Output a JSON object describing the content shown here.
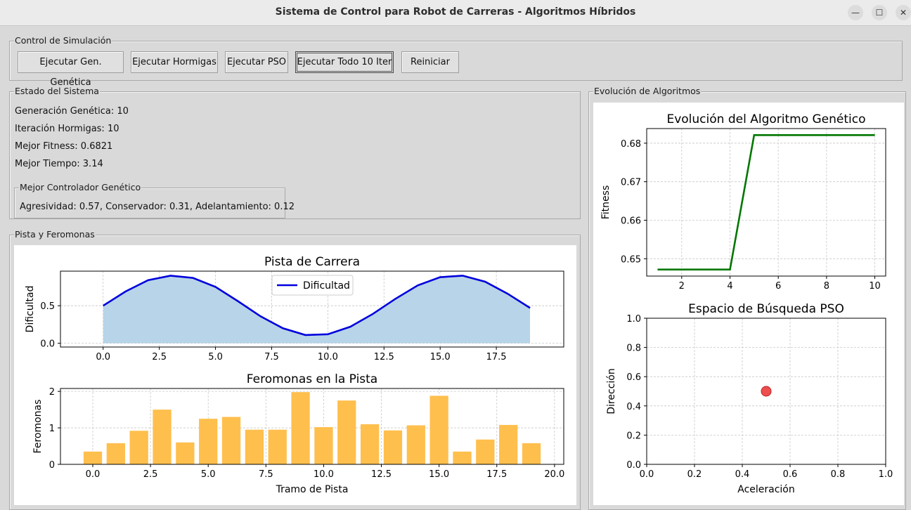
{
  "window": {
    "title": "Sistema de Control para Robot de Carreras - Algoritmos Híbridos",
    "minimize_glyph": "—",
    "maximize_glyph": "☐",
    "close_glyph": "✕"
  },
  "control": {
    "label": "Control de Simulación",
    "buttons": [
      "Ejecutar Gen. Genética",
      "Ejecutar Hormigas",
      "Ejecutar PSO",
      "Ejecutar Todo 10 Iter",
      "Reiniciar"
    ]
  },
  "estado": {
    "label": "Estado del Sistema",
    "generacion": "Generación Genética: 10",
    "iteracion": "Iteración Hormigas: 10",
    "fitness": "Mejor Fitness: 0.6821",
    "tiempo": "Mejor Tiempo: 3.14",
    "controlador_label": "Mejor Controlador Genético",
    "controlador_text": "Agresividad: 0.57, Conservador: 0.31, Adelantamiento: 0.12"
  },
  "pista": {
    "label": "Pista y Feromonas"
  },
  "evolucion": {
    "label": "Evolución de Algoritmos"
  },
  "chart_data": [
    {
      "type": "area",
      "title": "Pista de Carrera",
      "xlabel": "",
      "ylabel": "Dificultad",
      "x": [
        0,
        1,
        2,
        3,
        4,
        5,
        6,
        7,
        8,
        9,
        10,
        11,
        12,
        13,
        14,
        15,
        16,
        17,
        18,
        19
      ],
      "series": [
        {
          "name": "Dificultad",
          "values": [
            0.5,
            0.69,
            0.84,
            0.9,
            0.87,
            0.75,
            0.56,
            0.36,
            0.2,
            0.11,
            0.12,
            0.22,
            0.39,
            0.59,
            0.77,
            0.88,
            0.9,
            0.82,
            0.66,
            0.47
          ]
        }
      ],
      "xlim": [
        -1.9,
        20.5
      ],
      "ylim": [
        -0.05,
        0.96
      ],
      "xticks": [
        "0.0",
        "2.5",
        "5.0",
        "7.5",
        "10.0",
        "12.5",
        "15.0",
        "17.5"
      ],
      "yticks": [
        "0.0",
        "0.5"
      ],
      "legend": "top-center",
      "grid": true,
      "colors": {
        "line": "#0000dd",
        "fill": "#b7d4e8"
      }
    },
    {
      "type": "bar",
      "title": "Feromonas en la Pista",
      "xlabel": "Tramo de Pista",
      "ylabel": "Feromonas",
      "x": [
        0,
        1,
        2,
        3,
        4,
        5,
        6,
        7,
        8,
        9,
        10,
        11,
        12,
        13,
        14,
        15,
        16,
        17,
        18,
        19
      ],
      "values": [
        0.35,
        0.58,
        0.92,
        1.5,
        0.6,
        1.25,
        1.3,
        0.95,
        0.95,
        1.98,
        1.02,
        1.75,
        1.1,
        0.93,
        1.07,
        1.88,
        0.35,
        0.68,
        1.08,
        0.58
      ],
      "xlim": [
        -1.4,
        20.4
      ],
      "ylim": [
        0,
        2.08
      ],
      "xticks": [
        "0.0",
        "2.5",
        "5.0",
        "7.5",
        "10.0",
        "12.5",
        "15.0",
        "17.5",
        "20.0"
      ],
      "yticks": [
        "0",
        "1",
        "2"
      ],
      "grid": true,
      "colors": {
        "bar": "#ffbf4d"
      }
    },
    {
      "type": "line",
      "title": "Evolución del Algoritmo Genético",
      "xlabel": "",
      "ylabel": "Fitness",
      "x": [
        1,
        2,
        3,
        4,
        5,
        6,
        7,
        8,
        9,
        10
      ],
      "values": [
        0.6472,
        0.6472,
        0.6472,
        0.6472,
        0.6821,
        0.6821,
        0.6821,
        0.6821,
        0.6821,
        0.6821
      ],
      "xlim": [
        0.55,
        10.45
      ],
      "ylim": [
        0.6455,
        0.6838
      ],
      "xticks": [
        "2",
        "4",
        "6",
        "8",
        "10"
      ],
      "yticks": [
        "0.65",
        "0.66",
        "0.67",
        "0.68"
      ],
      "grid": true,
      "colors": {
        "line": "#007700"
      }
    },
    {
      "type": "scatter",
      "title": "Espacio de Búsqueda PSO",
      "xlabel": "Aceleración",
      "ylabel": "Dirección",
      "points": [
        {
          "x": 0.5,
          "y": 0.5
        }
      ],
      "xlim": [
        0,
        1
      ],
      "ylim": [
        0,
        1
      ],
      "xticks": [
        "0.0",
        "0.2",
        "0.4",
        "0.6",
        "0.8",
        "1.0"
      ],
      "yticks": [
        "0.0",
        "0.2",
        "0.4",
        "0.6",
        "0.8",
        "1.0"
      ],
      "grid": true,
      "colors": {
        "point": "#e83030"
      }
    }
  ]
}
